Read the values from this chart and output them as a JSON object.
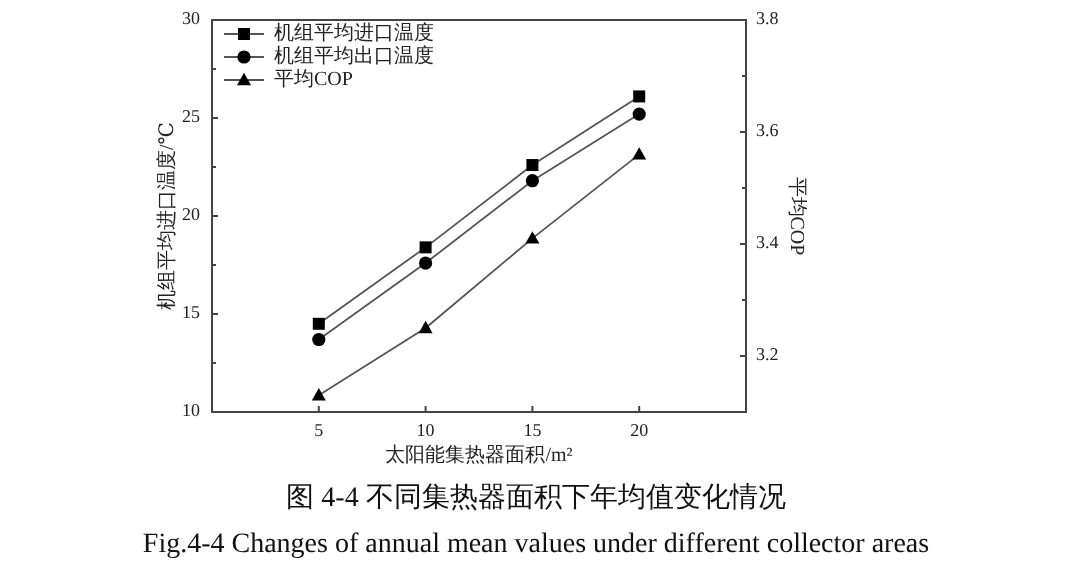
{
  "chart_data": {
    "type": "line",
    "title": "图 4-4  不同集热器面积下年均值变化情况",
    "subtitle": "Fig.4-4 Changes of annual mean values under different collector areas",
    "xlabel": "太阳能集热器面积/m²",
    "ylabel": "机组平均进口温度/℃",
    "y2label": "平均COP",
    "x": [
      5,
      10,
      15,
      20
    ],
    "series": [
      {
        "name": "机组平均进口温度",
        "color": "#000000",
        "marker": "square",
        "values": [
          14.5,
          18.4,
          22.6,
          26.1
        ]
      },
      {
        "name": "机组平均出口温度",
        "color": "#000000",
        "marker": "circle",
        "values": [
          13.7,
          17.6,
          21.8,
          25.2
        ]
      },
      {
        "name": "平均COP",
        "color": "#000000",
        "marker": "triangle",
        "axis": "y2",
        "values": [
          3.13,
          3.25,
          3.41,
          3.56
        ]
      }
    ],
    "xlim": [
      0,
      25
    ],
    "xticks": [
      5,
      10,
      15,
      20
    ],
    "ylim": [
      10,
      30
    ],
    "yticks": [
      10,
      {
        "value": 12.5,
        "label": null
      },
      15,
      {
        "value": 17.5,
        "label": null
      },
      20,
      {
        "value": 22.5,
        "label": null
      },
      25,
      {
        "value": 27.5,
        "label": null
      },
      30
    ],
    "y2lim": [
      3.1,
      3.8
    ],
    "y2ticks": [
      {
        "value": 3.1,
        "label": null
      },
      {
        "value": 3.2,
        "label": "3.2"
      },
      {
        "value": 3.3,
        "label": null
      },
      {
        "value": 3.4,
        "label": "3.4"
      },
      {
        "value": 3.5,
        "label": null
      },
      {
        "value": 3.6,
        "label": "3.6"
      },
      {
        "value": 3.7,
        "label": null
      },
      {
        "value": 3.8,
        "label": "3.8"
      }
    ],
    "legend": "top left"
  }
}
